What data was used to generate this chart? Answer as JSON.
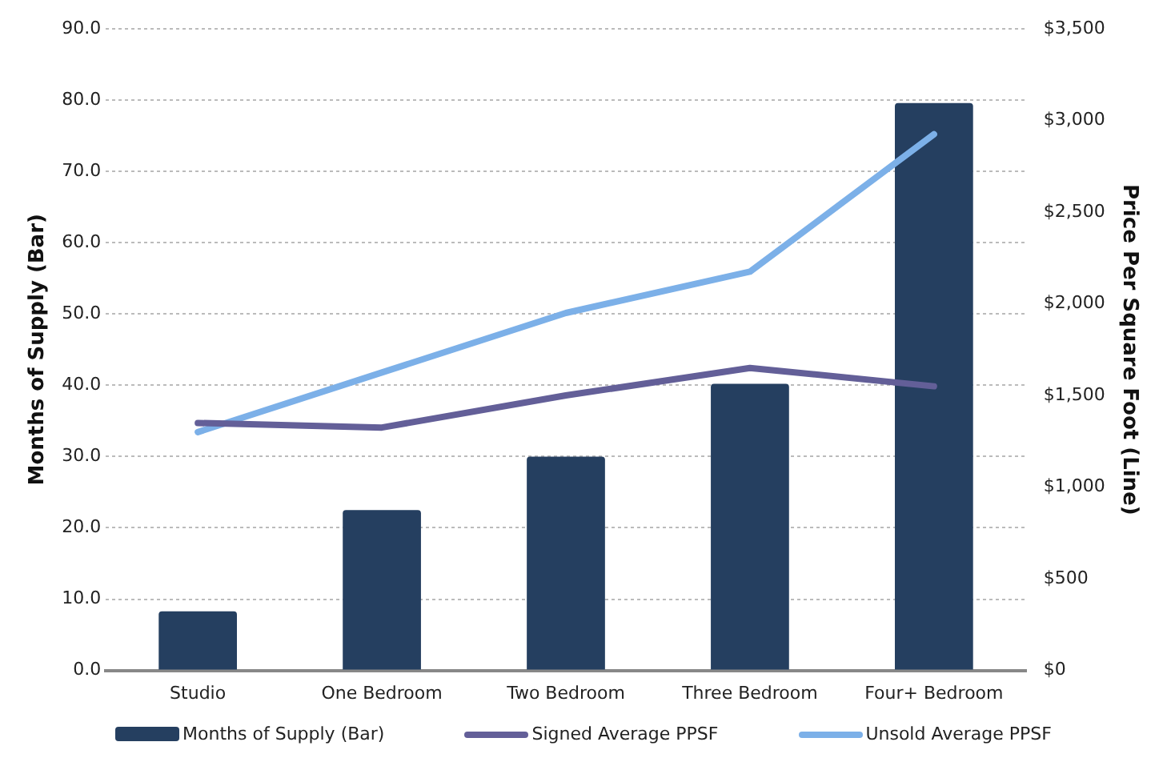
{
  "chart_data": {
    "type": "bar",
    "categories": [
      "Studio",
      "One Bedroom",
      "Two Bedroom",
      "Three Bedroom",
      "Four+ Bedroom"
    ],
    "series": [
      {
        "name": "Months of Supply (Bar)",
        "color": "#253f60",
        "values": [
          8.3,
          22.5,
          30.0,
          40.2,
          79.6
        ]
      },
      {
        "name": "Signed Average PPSF",
        "type": "line",
        "axis": "y2",
        "color": "#635f98",
        "values": [
          1350,
          1325,
          1500,
          1650,
          1550
        ]
      },
      {
        "name": "Unsold Average PPSF",
        "type": "line",
        "axis": "y2",
        "color": "#7cb0e8",
        "values": [
          1300,
          1625,
          1950,
          2175,
          2925
        ]
      }
    ],
    "ylabel": "Months of Supply (Bar)",
    "y2label": "Price Per Square Foot (Line)",
    "ylim": [
      0,
      90
    ],
    "yticks": [
      {
        "value": 0,
        "label": "0.0"
      },
      {
        "value": 10,
        "label": "10.0"
      },
      {
        "value": 20,
        "label": "20.0"
      },
      {
        "value": 30,
        "label": "30.0"
      },
      {
        "value": 40,
        "label": "40.0"
      },
      {
        "value": 50,
        "label": "50.0"
      },
      {
        "value": 60,
        "label": "60.0"
      },
      {
        "value": 70,
        "label": "70.0"
      },
      {
        "value": 80,
        "label": "80.0"
      },
      {
        "value": 90,
        "label": "90.0"
      }
    ],
    "y2lim": [
      0,
      3500
    ],
    "y2ticks": [
      {
        "value": 0,
        "label": "$0"
      },
      {
        "value": 500,
        "label": "$500"
      },
      {
        "value": 1000,
        "label": "$1,000"
      },
      {
        "value": 1500,
        "label": "$1,500"
      },
      {
        "value": 2000,
        "label": "$2,000"
      },
      {
        "value": 2500,
        "label": "$2,500"
      },
      {
        "value": 3000,
        "label": "$3,000"
      },
      {
        "value": 3500,
        "label": "$3,500"
      }
    ],
    "grid": "y",
    "legend": "bottom",
    "marker": "none"
  }
}
